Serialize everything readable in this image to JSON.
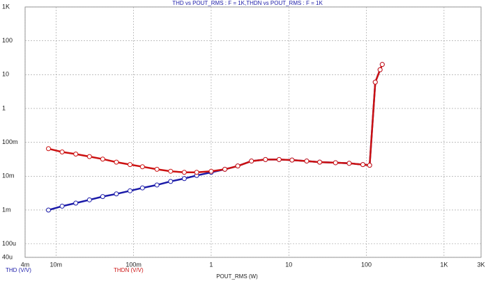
{
  "chart_data": {
    "type": "line",
    "title": "THD vs POUT_RMS : F = 1K,THDN vs POUT_RMS : F = 1K",
    "x_label": "POUT_RMS (W)",
    "log_x": true,
    "log_y": true,
    "grid": true,
    "xlim": [
      0.004,
      3000
    ],
    "ylim": [
      4e-05,
      1000
    ],
    "xticks": [
      {
        "value": 0.004,
        "label": "4m"
      },
      {
        "value": 0.01,
        "label": "10m"
      },
      {
        "value": 0.1,
        "label": "100m"
      },
      1,
      10,
      100,
      {
        "value": 1000,
        "label": "1K"
      },
      {
        "value": 3000,
        "label": "3K"
      }
    ],
    "yticks": [
      {
        "value": 4e-05,
        "label": "40u"
      },
      {
        "value": 0.0001,
        "label": "100u"
      },
      {
        "value": 0.001,
        "label": "1m"
      },
      {
        "value": 0.01,
        "label": "10m"
      },
      {
        "value": 0.1,
        "label": "100m"
      },
      1,
      10,
      100,
      {
        "value": 1000,
        "label": "1K"
      }
    ],
    "x": [
      0.008,
      0.012,
      0.018,
      0.027,
      0.04,
      0.06,
      0.09,
      0.13,
      0.2,
      0.3,
      0.45,
      0.65,
      1,
      1.5,
      2.2,
      3.3,
      5,
      7.5,
      11,
      17,
      25,
      40,
      60,
      90,
      110,
      130,
      150,
      160
    ],
    "series": [
      {
        "name": "THD (V/V)",
        "color": "#1a1aa8",
        "values": [
          0.001,
          0.0013,
          0.0016,
          0.002,
          0.0025,
          0.003,
          0.0037,
          0.0045,
          0.0055,
          0.007,
          0.0085,
          0.0105,
          0.013,
          0.016,
          0.02,
          0.028,
          0.031,
          0.031,
          0.03,
          0.028,
          0.026,
          0.025,
          0.024,
          0.022,
          0.021,
          6,
          14,
          20
        ]
      },
      {
        "name": "THDN (V/V)",
        "color": "#cc1111",
        "values": [
          0.065,
          0.052,
          0.045,
          0.038,
          0.032,
          0.026,
          0.022,
          0.019,
          0.016,
          0.014,
          0.013,
          0.013,
          0.014,
          0.016,
          0.02,
          0.028,
          0.031,
          0.031,
          0.03,
          0.028,
          0.026,
          0.025,
          0.024,
          0.022,
          0.021,
          6,
          14,
          20
        ]
      }
    ]
  }
}
